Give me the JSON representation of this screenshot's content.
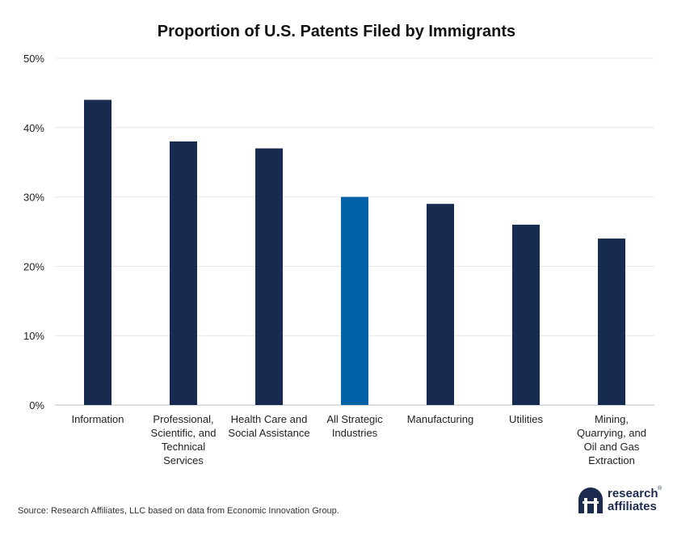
{
  "chart_data": {
    "type": "bar",
    "title": "Proportion of U.S. Patents Filed by Immigrants",
    "categories": [
      [
        "Information"
      ],
      [
        "Professional,",
        "Scientific, and",
        "Technical",
        "Services"
      ],
      [
        "Health Care and",
        "Social Assistance"
      ],
      [
        "All Strategic",
        "Industries"
      ],
      [
        "Manufacturing"
      ],
      [
        "Utilities"
      ],
      [
        "Mining,",
        "Quarrying, and",
        "Oil and Gas",
        "Extraction"
      ]
    ],
    "values": [
      44,
      38,
      37,
      30,
      29,
      26,
      24
    ],
    "highlight_index": 3,
    "ylim": [
      0,
      50
    ],
    "yticks": [
      0,
      10,
      20,
      30,
      40,
      50
    ],
    "ytick_format": "%",
    "grid": true,
    "colors": {
      "bar": "#172a4f",
      "highlight": "#0063a8",
      "grid": "#e6e6e6"
    }
  },
  "source": "Source: Research Affiliates, LLC based on data from Economic Innovation Group.",
  "logo": {
    "line1": "research",
    "line2": "affiliates",
    "mark": "®"
  }
}
